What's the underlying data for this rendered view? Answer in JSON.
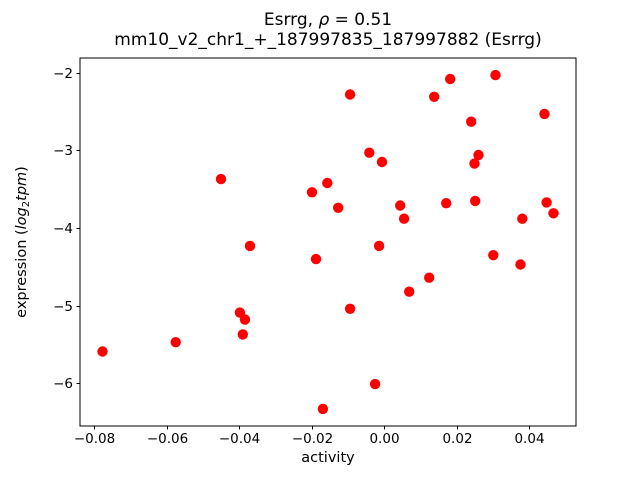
{
  "figure": {
    "title": {
      "prefix": "Esrrg, ",
      "rho": "ρ",
      "suffix": " = 0.51"
    },
    "subtitle": "mm10_v2_chr1_+_187997835_187997882 (Esrrg)",
    "xlabel": "activity",
    "ylabel": {
      "prefix": "expression (",
      "log": "log",
      "sub": "2",
      "unit": "tpm",
      "suffix": ")"
    }
  },
  "chart_data": {
    "type": "scatter",
    "title": "Esrrg, ρ = 0.51",
    "subtitle": "mm10_v2_chr1_+_187997835_187997882 (Esrrg)",
    "xlabel": "activity",
    "ylabel": "expression (log2tpm)",
    "xlim": [
      -0.0839,
      0.0529
    ],
    "ylim": [
      -6.55,
      -1.81
    ],
    "grid": false,
    "legend": null,
    "marker": {
      "color": "#ff0000",
      "radius_px": 5.2
    },
    "x_ticks": {
      "values": [
        -0.08,
        -0.06,
        -0.04,
        -0.02,
        0.0,
        0.02,
        0.04
      ],
      "labels": [
        "−0.08",
        "−0.06",
        "−0.04",
        "−0.02",
        "0.00",
        "0.02",
        "0.04"
      ]
    },
    "y_ticks": {
      "values": [
        -2,
        -3,
        -4,
        -5,
        -6
      ],
      "labels": [
        "−2",
        "−3",
        "−4",
        "−5",
        "−6"
      ]
    },
    "points": [
      {
        "x": -0.0777,
        "y": -5.59
      },
      {
        "x": -0.0575,
        "y": -5.47
      },
      {
        "x": -0.045,
        "y": -3.37
      },
      {
        "x": -0.0398,
        "y": -5.09
      },
      {
        "x": -0.039,
        "y": -5.37
      },
      {
        "x": -0.0384,
        "y": -5.18
      },
      {
        "x": -0.037,
        "y": -4.23
      },
      {
        "x": -0.0199,
        "y": -3.54
      },
      {
        "x": -0.0188,
        "y": -4.4
      },
      {
        "x": -0.0169,
        "y": -6.33
      },
      {
        "x": -0.0157,
        "y": -3.42
      },
      {
        "x": -0.0127,
        "y": -3.74
      },
      {
        "x": -0.0094,
        "y": -2.28
      },
      {
        "x": -0.0094,
        "y": -5.04
      },
      {
        "x": -0.0041,
        "y": -3.03
      },
      {
        "x": -0.0025,
        "y": -6.01
      },
      {
        "x": -0.0014,
        "y": -4.23
      },
      {
        "x": -0.0006,
        "y": -3.15
      },
      {
        "x": 0.0044,
        "y": -3.71
      },
      {
        "x": 0.0055,
        "y": -3.88
      },
      {
        "x": 0.0069,
        "y": -4.82
      },
      {
        "x": 0.0124,
        "y": -4.64
      },
      {
        "x": 0.0138,
        "y": -2.31
      },
      {
        "x": 0.0171,
        "y": -3.68
      },
      {
        "x": 0.0182,
        "y": -2.08
      },
      {
        "x": 0.024,
        "y": -2.63
      },
      {
        "x": 0.0249,
        "y": -3.17
      },
      {
        "x": 0.0251,
        "y": -3.65
      },
      {
        "x": 0.026,
        "y": -3.06
      },
      {
        "x": 0.0301,
        "y": -4.35
      },
      {
        "x": 0.0307,
        "y": -2.03
      },
      {
        "x": 0.0376,
        "y": -4.47
      },
      {
        "x": 0.0381,
        "y": -3.88
      },
      {
        "x": 0.0442,
        "y": -2.53
      },
      {
        "x": 0.0448,
        "y": -3.67
      },
      {
        "x": 0.0467,
        "y": -3.81
      }
    ]
  }
}
